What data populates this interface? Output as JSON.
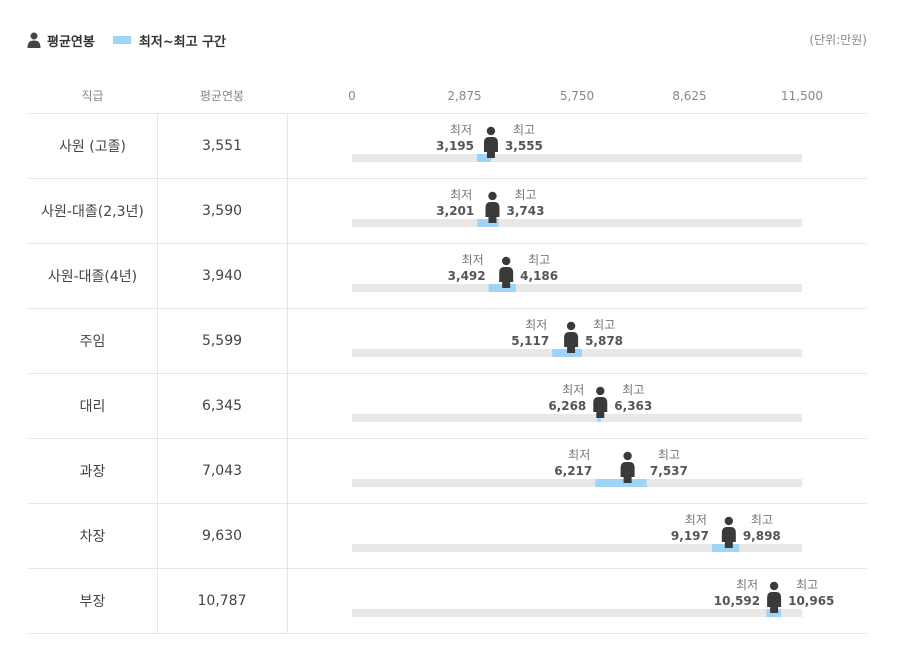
{
  "legend": {
    "avg_label": "평균연봉",
    "range_label": "최저~최고 구간",
    "range_color": "#9fd4f7",
    "person_icon": "person-icon"
  },
  "unit": "(단위:만원)",
  "headers": {
    "grade": "직급",
    "avg": "평균연봉"
  },
  "labels": {
    "min": "최저",
    "max": "최고"
  },
  "chart_data": {
    "type": "range-bar",
    "axis": {
      "min": 0,
      "max": 11500,
      "ticks": [
        "0",
        "2,875",
        "5,750",
        "8,625",
        "11,500"
      ],
      "tick_values": [
        0,
        2875,
        5750,
        8625,
        11500
      ]
    },
    "track_color": "#e8e8e8",
    "range_color": "#9fd4f7",
    "rows": [
      {
        "grade": "사원 (고졸)",
        "avg": 3551,
        "avg_text": "3,551",
        "min": 3195,
        "min_text": "3,195",
        "max": 3555,
        "max_text": "3,555"
      },
      {
        "grade": "사원-대졸(2,3년)",
        "avg": 3590,
        "avg_text": "3,590",
        "min": 3201,
        "min_text": "3,201",
        "max": 3743,
        "max_text": "3,743"
      },
      {
        "grade": "사원-대졸(4년)",
        "avg": 3940,
        "avg_text": "3,940",
        "min": 3492,
        "min_text": "3,492",
        "max": 4186,
        "max_text": "4,186"
      },
      {
        "grade": "주임",
        "avg": 5599,
        "avg_text": "5,599",
        "min": 5117,
        "min_text": "5,117",
        "max": 5878,
        "max_text": "5,878"
      },
      {
        "grade": "대리",
        "avg": 6345,
        "avg_text": "6,345",
        "min": 6268,
        "min_text": "6,268",
        "max": 6363,
        "max_text": "6,363"
      },
      {
        "grade": "과장",
        "avg": 7043,
        "avg_text": "7,043",
        "min": 6217,
        "min_text": "6,217",
        "max": 7537,
        "max_text": "7,537"
      },
      {
        "grade": "차장",
        "avg": 9630,
        "avg_text": "9,630",
        "min": 9197,
        "min_text": "9,197",
        "max": 9898,
        "max_text": "9,898"
      },
      {
        "grade": "부장",
        "avg": 10787,
        "avg_text": "10,787",
        "min": 10592,
        "min_text": "10,592",
        "max": 10965,
        "max_text": "10,965"
      }
    ]
  }
}
